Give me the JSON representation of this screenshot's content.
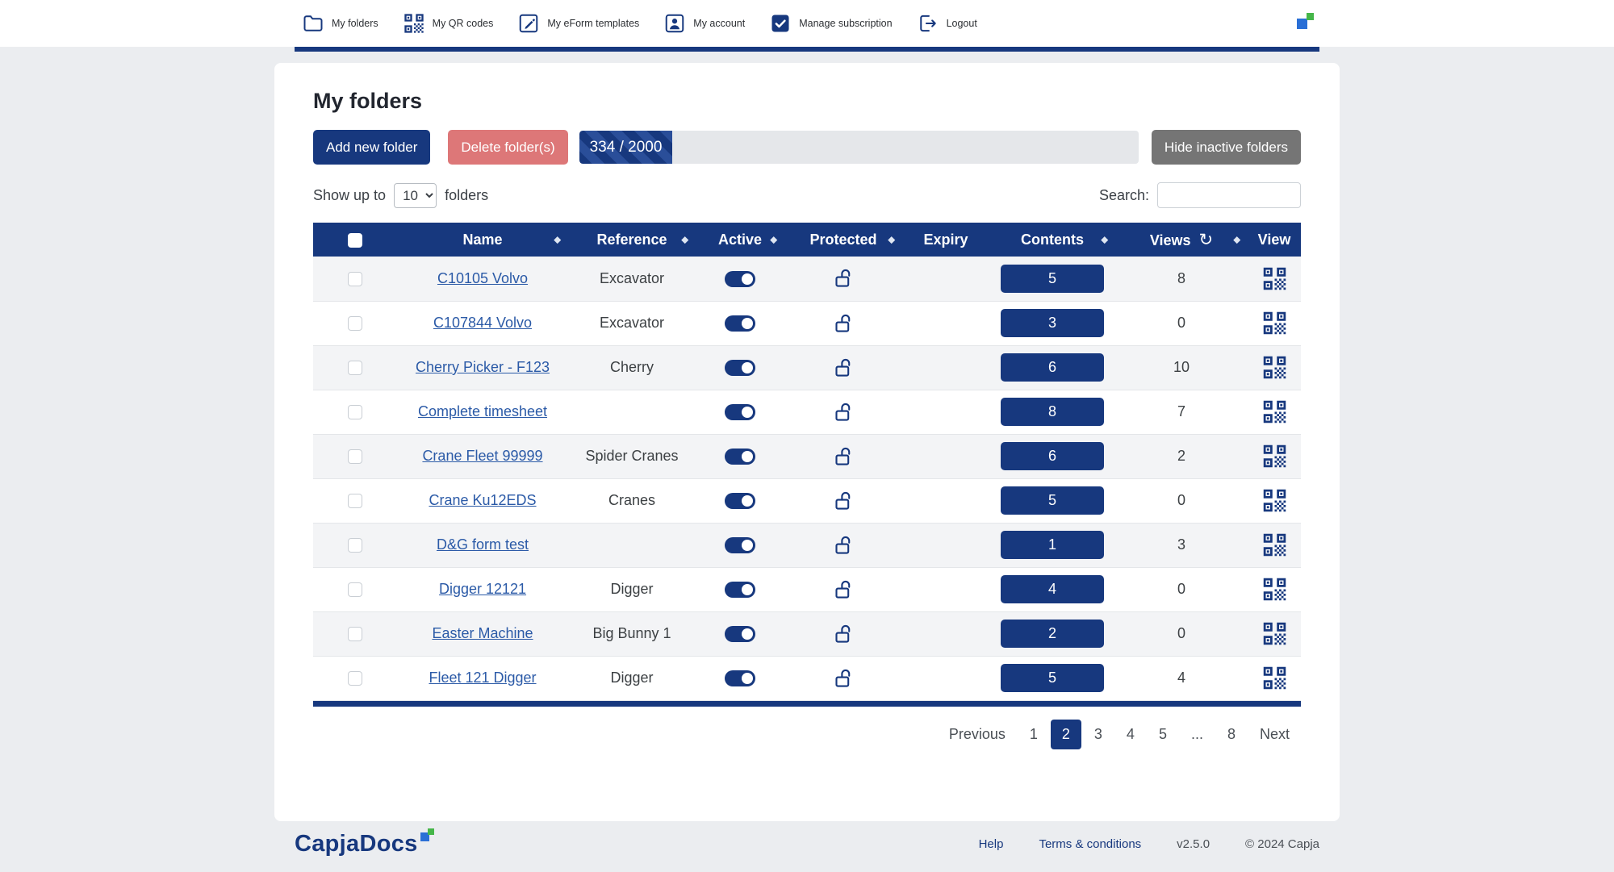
{
  "colors": {
    "navy": "#17387e",
    "delete_button": "#dd7778",
    "gray_button": "#757575",
    "link_blue": "#2b5aa7",
    "logo_blue": "#2a6fd6",
    "logo_green": "#45b649",
    "row_stripe": "#f3f4f6"
  },
  "nav": {
    "items": [
      {
        "label": "My folders",
        "icon": "folder-icon"
      },
      {
        "label": "My QR codes",
        "icon": "qr-code-icon"
      },
      {
        "label": "My eForm templates",
        "icon": "edit-icon"
      },
      {
        "label": "My account",
        "icon": "user-icon"
      },
      {
        "label": "Manage subscription",
        "icon": "checkbox-icon"
      },
      {
        "label": "Logout",
        "icon": "logout-icon"
      }
    ]
  },
  "main": {
    "title": "My folders",
    "buttons": {
      "add": "Add new folder",
      "delete": "Delete folder(s)",
      "hide": "Hide inactive folders"
    },
    "quota": {
      "label": "334 / 2000",
      "used": 334,
      "total": 2000,
      "percent": 16.7
    },
    "show": {
      "prefix": "Show up to",
      "selected": "10",
      "suffix": "folders"
    },
    "search": {
      "label": "Search:",
      "value": ""
    }
  },
  "table": {
    "columns": [
      {
        "label": "",
        "type": "select-all"
      },
      {
        "label": "Name",
        "sortable": true
      },
      {
        "label": "Reference",
        "sortable": true
      },
      {
        "label": "Active",
        "sortable": true
      },
      {
        "label": "Protected",
        "sortable": true
      },
      {
        "label": "Expiry",
        "sortable": true
      },
      {
        "label": "Contents",
        "sortable": true
      },
      {
        "label": "Views",
        "sortable": true,
        "refresh_icon": true
      },
      {
        "label": "View",
        "sortable": false
      }
    ],
    "rows": [
      {
        "name": "C10105 Volvo",
        "reference": "Excavator",
        "active": true,
        "protected": false,
        "expiry": "",
        "contents": "5",
        "views": "8"
      },
      {
        "name": "C107844 Volvo",
        "reference": "Excavator",
        "active": true,
        "protected": false,
        "expiry": "",
        "contents": "3",
        "views": "0"
      },
      {
        "name": "Cherry Picker - F123",
        "reference": "Cherry",
        "active": true,
        "protected": false,
        "expiry": "",
        "contents": "6",
        "views": "10"
      },
      {
        "name": "Complete timesheet",
        "reference": "",
        "active": true,
        "protected": false,
        "expiry": "",
        "contents": "8",
        "views": "7"
      },
      {
        "name": "Crane Fleet 99999",
        "reference": "Spider Cranes",
        "active": true,
        "protected": false,
        "expiry": "",
        "contents": "6",
        "views": "2"
      },
      {
        "name": "Crane Ku12EDS",
        "reference": "Cranes",
        "active": true,
        "protected": false,
        "expiry": "",
        "contents": "5",
        "views": "0"
      },
      {
        "name": "D&G form test",
        "reference": "",
        "active": true,
        "protected": false,
        "expiry": "",
        "contents": "1",
        "views": "3"
      },
      {
        "name": "Digger 12121",
        "reference": "Digger",
        "active": true,
        "protected": false,
        "expiry": "",
        "contents": "4",
        "views": "0"
      },
      {
        "name": "Easter Machine",
        "reference": "Big Bunny 1",
        "active": true,
        "protected": false,
        "expiry": "",
        "contents": "2",
        "views": "0"
      },
      {
        "name": "Fleet 121 Digger",
        "reference": "Digger",
        "active": true,
        "protected": false,
        "expiry": "",
        "contents": "5",
        "views": "4"
      }
    ]
  },
  "pagination": {
    "items": [
      {
        "label": "Previous",
        "name": "pagination-previous",
        "active": false
      },
      {
        "label": "1",
        "name": "pagination-page-1",
        "active": false
      },
      {
        "label": "2",
        "name": "pagination-page-2",
        "active": true
      },
      {
        "label": "3",
        "name": "pagination-page-3",
        "active": false
      },
      {
        "label": "4",
        "name": "pagination-page-4",
        "active": false
      },
      {
        "label": "5",
        "name": "pagination-page-5",
        "active": false
      },
      {
        "label": "...",
        "name": "pagination-ellipsis",
        "active": false
      },
      {
        "label": "8",
        "name": "pagination-page-8",
        "active": false
      },
      {
        "label": "Next",
        "name": "pagination-next",
        "active": false
      }
    ]
  },
  "footer": {
    "logo": "CapjaDocs",
    "links": [
      {
        "label": "Help"
      },
      {
        "label": "Terms & conditions"
      }
    ],
    "version": "v2.5.0",
    "copyright": "© 2024 Capja"
  }
}
